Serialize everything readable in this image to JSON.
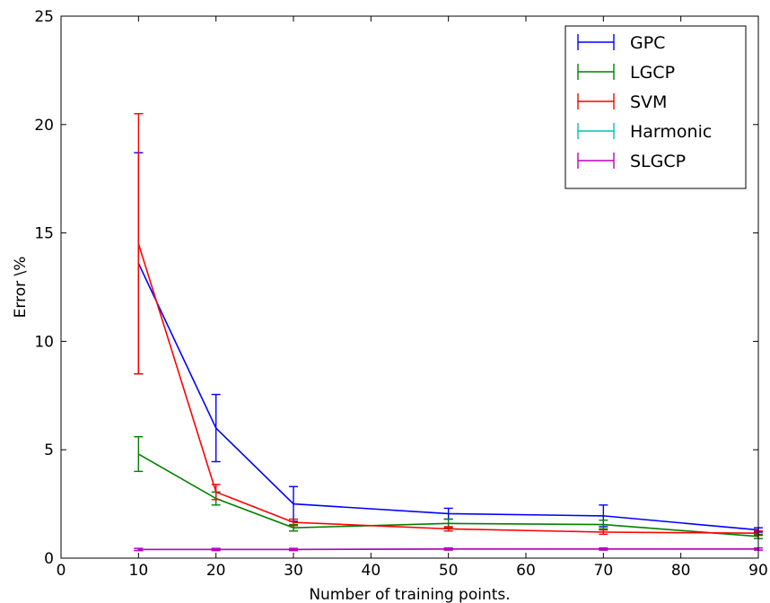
{
  "chart_data": {
    "type": "line",
    "title": "",
    "xlabel": "Number of training points.",
    "ylabel": "Error \\%",
    "xlim": [
      0,
      90
    ],
    "ylim": [
      0,
      25
    ],
    "x_ticks": [
      0,
      10,
      20,
      30,
      40,
      50,
      60,
      70,
      80,
      90
    ],
    "y_ticks": [
      0,
      5,
      10,
      15,
      20,
      25
    ],
    "grid": false,
    "legend_position": "top-right",
    "error_bars": true,
    "x": [
      10,
      20,
      30,
      50,
      70,
      90
    ],
    "series": [
      {
        "name": "GPC",
        "color": "#0000ff",
        "values": [
          13.6,
          6.0,
          2.5,
          2.05,
          1.95,
          1.3
        ],
        "errors": [
          5.1,
          1.55,
          0.8,
          0.25,
          0.5,
          0.1
        ]
      },
      {
        "name": "LGCP",
        "color": "#008000",
        "values": [
          4.8,
          2.75,
          1.4,
          1.6,
          1.55,
          1.0
        ],
        "errors": [
          0.8,
          0.3,
          0.15,
          0.2,
          0.2,
          0.1
        ]
      },
      {
        "name": "SVM",
        "color": "#ff0000",
        "values": [
          14.5,
          3.05,
          1.65,
          1.35,
          1.2,
          1.15
        ],
        "errors": [
          6.0,
          0.35,
          0.15,
          0.1,
          0.1,
          0.1
        ]
      },
      {
        "name": "Harmonic",
        "color": "#00bfbf",
        "values": [
          0.4,
          0.4,
          0.4,
          0.42,
          0.42,
          0.42
        ],
        "errors": [
          0.05,
          0.05,
          0.05,
          0.05,
          0.05,
          0.05
        ]
      },
      {
        "name": "SLGCP",
        "color": "#bf00bf",
        "values": [
          0.4,
          0.4,
          0.4,
          0.42,
          0.42,
          0.42
        ],
        "errors": [
          0.05,
          0.05,
          0.05,
          0.05,
          0.05,
          0.05
        ]
      }
    ]
  }
}
